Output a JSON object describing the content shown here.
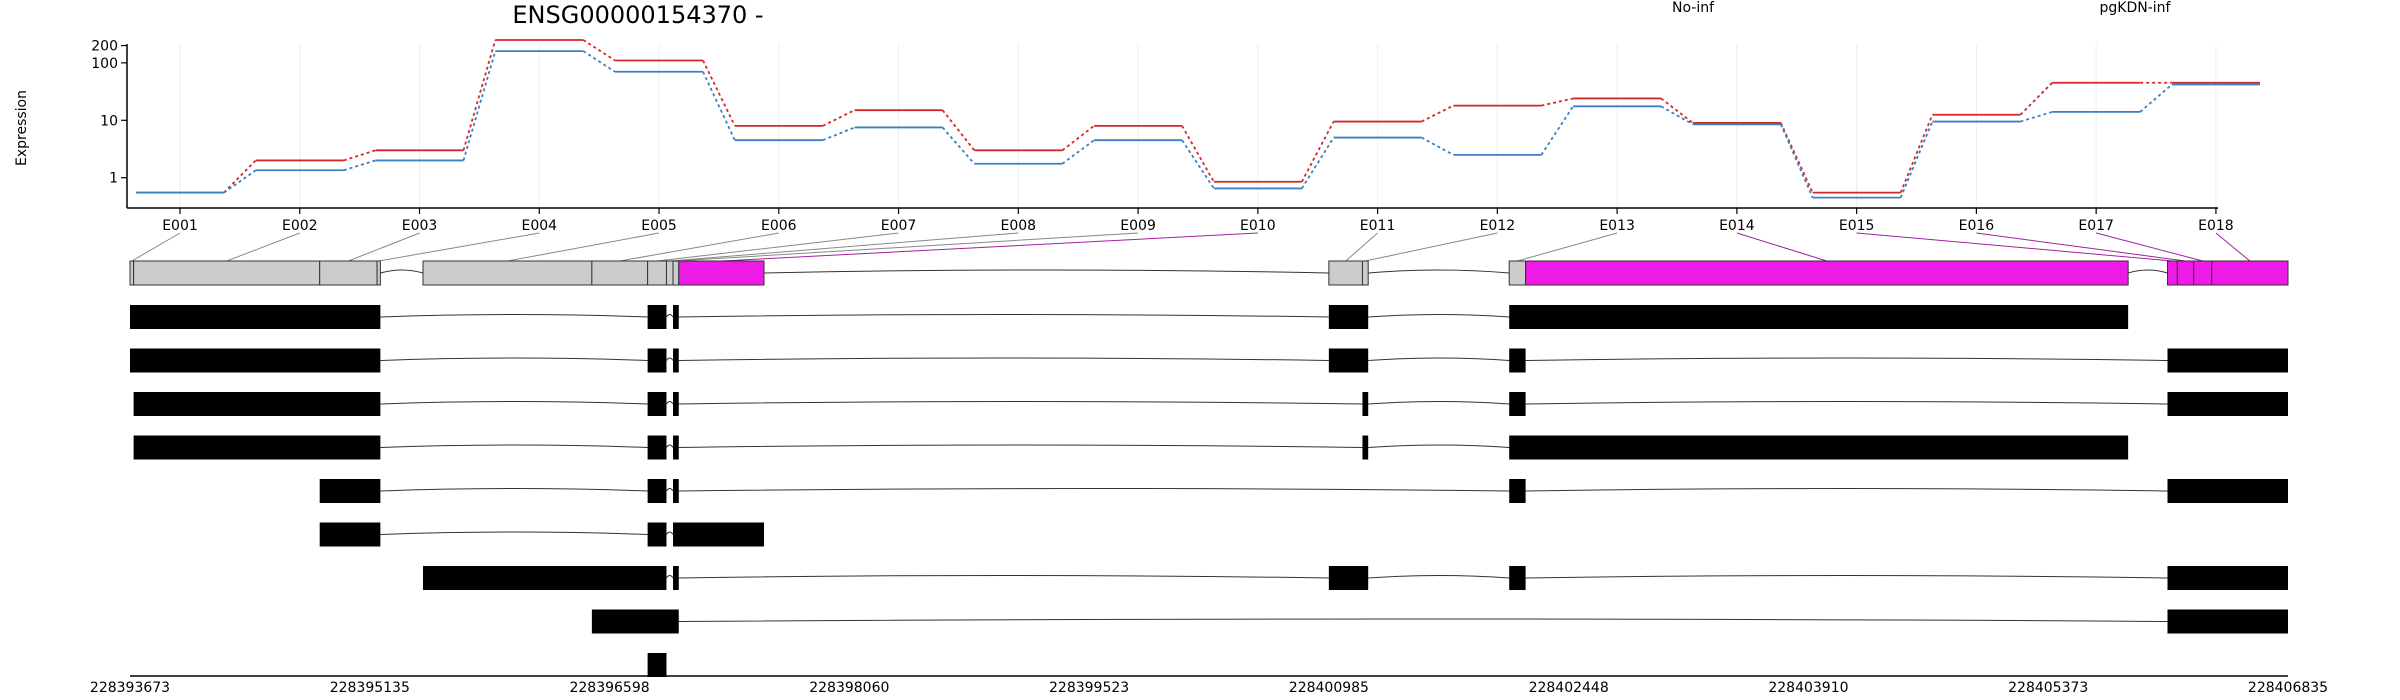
{
  "title": "ENSG00000154370 -",
  "legend": [
    {
      "name": "No-inf",
      "color": "#d62728"
    },
    {
      "name": "pgKDN-inf",
      "color": "#3a7fc2"
    }
  ],
  "chart_data": {
    "type": "line",
    "title": "ENSG00000154370 -",
    "ylabel": "Expression",
    "yscale": "log",
    "yticks": [
      {
        "value": 1,
        "label": "1"
      },
      {
        "value": 10,
        "label": "10"
      },
      {
        "value": 100,
        "label": "100"
      },
      {
        "value": 200,
        "label": "200"
      }
    ],
    "categories": [
      "E001",
      "E002",
      "E003",
      "E004",
      "E005",
      "E006",
      "E007",
      "E008",
      "E009",
      "E010",
      "E011",
      "E012",
      "E013",
      "E014",
      "E015",
      "E016",
      "E017",
      "E018"
    ],
    "series": [
      {
        "name": "No-inf",
        "color": "#d62728",
        "values": [
          0.55,
          2.0,
          3.0,
          250,
          110,
          8.0,
          15.0,
          3.0,
          8.0,
          0.85,
          9.5,
          18.0,
          24.0,
          9.0,
          0.55,
          12.5,
          45.0,
          45.0
        ]
      },
      {
        "name": "pgKDN-inf",
        "color": "#3a7fc2",
        "values": [
          0.55,
          1.35,
          2.0,
          160,
          70,
          4.5,
          7.5,
          1.75,
          4.5,
          0.65,
          5.0,
          2.5,
          17.5,
          8.5,
          0.45,
          9.5,
          14.0,
          42.0
        ]
      }
    ],
    "grid": true,
    "legend_position": "top-right"
  },
  "gene_model": {
    "coordinate_ticks": [
      "228393673",
      "228395135",
      "228396598",
      "228398060",
      "228399523",
      "228400985",
      "228402448",
      "228403910",
      "228405373",
      "228406835"
    ],
    "genomic_range": [
      228393673,
      228406835
    ],
    "exon_bins": [
      {
        "id": "E001",
        "start": 228393673,
        "end": 228393695,
        "highlight": false
      },
      {
        "id": "E002",
        "start": 228393695,
        "end": 228394830,
        "highlight": false
      },
      {
        "id": "E003",
        "start": 228394830,
        "end": 228395180,
        "highlight": false
      },
      {
        "id": "E004",
        "start": 228395180,
        "end": 228395200,
        "highlight": false
      },
      {
        "id": "E005",
        "start": 228395460,
        "end": 228396490,
        "highlight": false
      },
      {
        "id": "E006",
        "start": 228396490,
        "end": 228396830,
        "highlight": false
      },
      {
        "id": "E007",
        "start": 228396830,
        "end": 228396945,
        "highlight": false
      },
      {
        "id": "E008",
        "start": 228396945,
        "end": 228396985,
        "highlight": false
      },
      {
        "id": "E009",
        "start": 228396985,
        "end": 228397020,
        "highlight": false
      },
      {
        "id": "E010",
        "start": 228397020,
        "end": 228397540,
        "highlight": true
      },
      {
        "id": "E011",
        "start": 228400985,
        "end": 228401190,
        "highlight": false
      },
      {
        "id": "E012",
        "start": 228401190,
        "end": 228401225,
        "highlight": false
      },
      {
        "id": "E013",
        "start": 228402085,
        "end": 228402185,
        "highlight": false
      },
      {
        "id": "E014",
        "start": 228402185,
        "end": 228405860,
        "highlight": true
      },
      {
        "id": "E015",
        "start": 228406100,
        "end": 228406160,
        "highlight": true
      },
      {
        "id": "E016",
        "start": 228406160,
        "end": 228406260,
        "highlight": true
      },
      {
        "id": "E017",
        "start": 228406260,
        "end": 228406370,
        "highlight": true
      },
      {
        "id": "E018",
        "start": 228406370,
        "end": 228406835,
        "highlight": true
      }
    ],
    "transcripts": [
      [
        [
          228393673,
          228395200
        ],
        [
          228396830,
          228396945
        ],
        [
          228396985,
          228397020
        ],
        [
          228400985,
          228401225
        ],
        [
          228402085,
          228405860
        ]
      ],
      [
        [
          228393673,
          228395200
        ],
        [
          228396830,
          228396945
        ],
        [
          228396985,
          228397020
        ],
        [
          228400985,
          228401225
        ],
        [
          228402085,
          228402185
        ],
        [
          228406100,
          228406835
        ]
      ],
      [
        [
          228393695,
          228395200
        ],
        [
          228396830,
          228396945
        ],
        [
          228396985,
          228397020
        ],
        [
          228401190,
          228401225
        ],
        [
          228402085,
          228402185
        ],
        [
          228406100,
          228406835
        ]
      ],
      [
        [
          228393695,
          228395200
        ],
        [
          228396830,
          228396945
        ],
        [
          228396985,
          228397020
        ],
        [
          228401190,
          228401225
        ],
        [
          228402085,
          228405860
        ]
      ],
      [
        [
          228394830,
          228395200
        ],
        [
          228396830,
          228396945
        ],
        [
          228396985,
          228397020
        ],
        [
          228402085,
          228402185
        ],
        [
          228406100,
          228406835
        ]
      ],
      [
        [
          228394830,
          228395200
        ],
        [
          228396830,
          228396945
        ],
        [
          228396985,
          228397540
        ]
      ],
      [
        [
          228395460,
          228396945
        ],
        [
          228396985,
          228397020
        ],
        [
          228400985,
          228401225
        ],
        [
          228402085,
          228402185
        ],
        [
          228406100,
          228406835
        ]
      ],
      [
        [
          228396490,
          228397020
        ],
        [
          228406100,
          228406835
        ]
      ],
      [
        [
          228396830,
          228396945
        ]
      ]
    ]
  },
  "colors": {
    "exon_bin_fill": "#cccccc",
    "exon_bin_highlight": "#ee1ae6",
    "transcript_exon": "#000000",
    "grid": "#eeeeee"
  }
}
